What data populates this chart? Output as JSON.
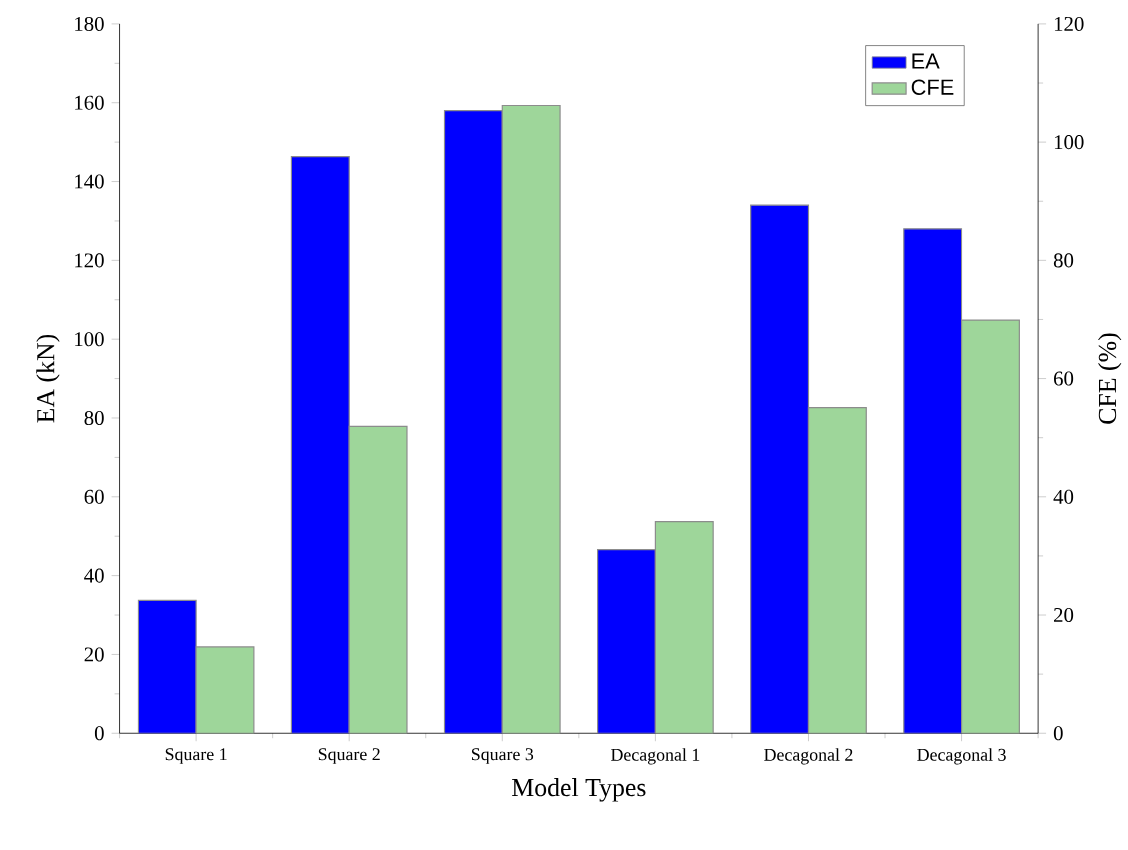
{
  "chart_data": {
    "type": "bar",
    "xlabel": "Model Types",
    "ylabel": "EA (kN)",
    "y2label": "CFE (%)",
    "categories": [
      "Square 1",
      "Square 2",
      "Square 3",
      "Decagonal 1",
      "Decagonal 2",
      "Decagonal 3"
    ],
    "series": [
      {
        "name": "EA",
        "color": "#0000ff",
        "values": [
          33.7,
          146.3,
          158,
          46.6,
          134,
          128
        ]
      },
      {
        "name": "CFE",
        "color": "#9ed69a",
        "axis": "y2",
        "values": [
          14.6,
          51.9,
          106.2,
          35.8,
          55.1,
          69.9
        ]
      }
    ],
    "ylim": [
      0,
      180
    ],
    "yticks": [
      0,
      20,
      40,
      60,
      80,
      100,
      120,
      140,
      160,
      180
    ],
    "y2lim": [
      0,
      120
    ],
    "y2ticks": [
      0,
      20,
      40,
      60,
      80,
      100,
      120
    ],
    "legend": "top right"
  }
}
